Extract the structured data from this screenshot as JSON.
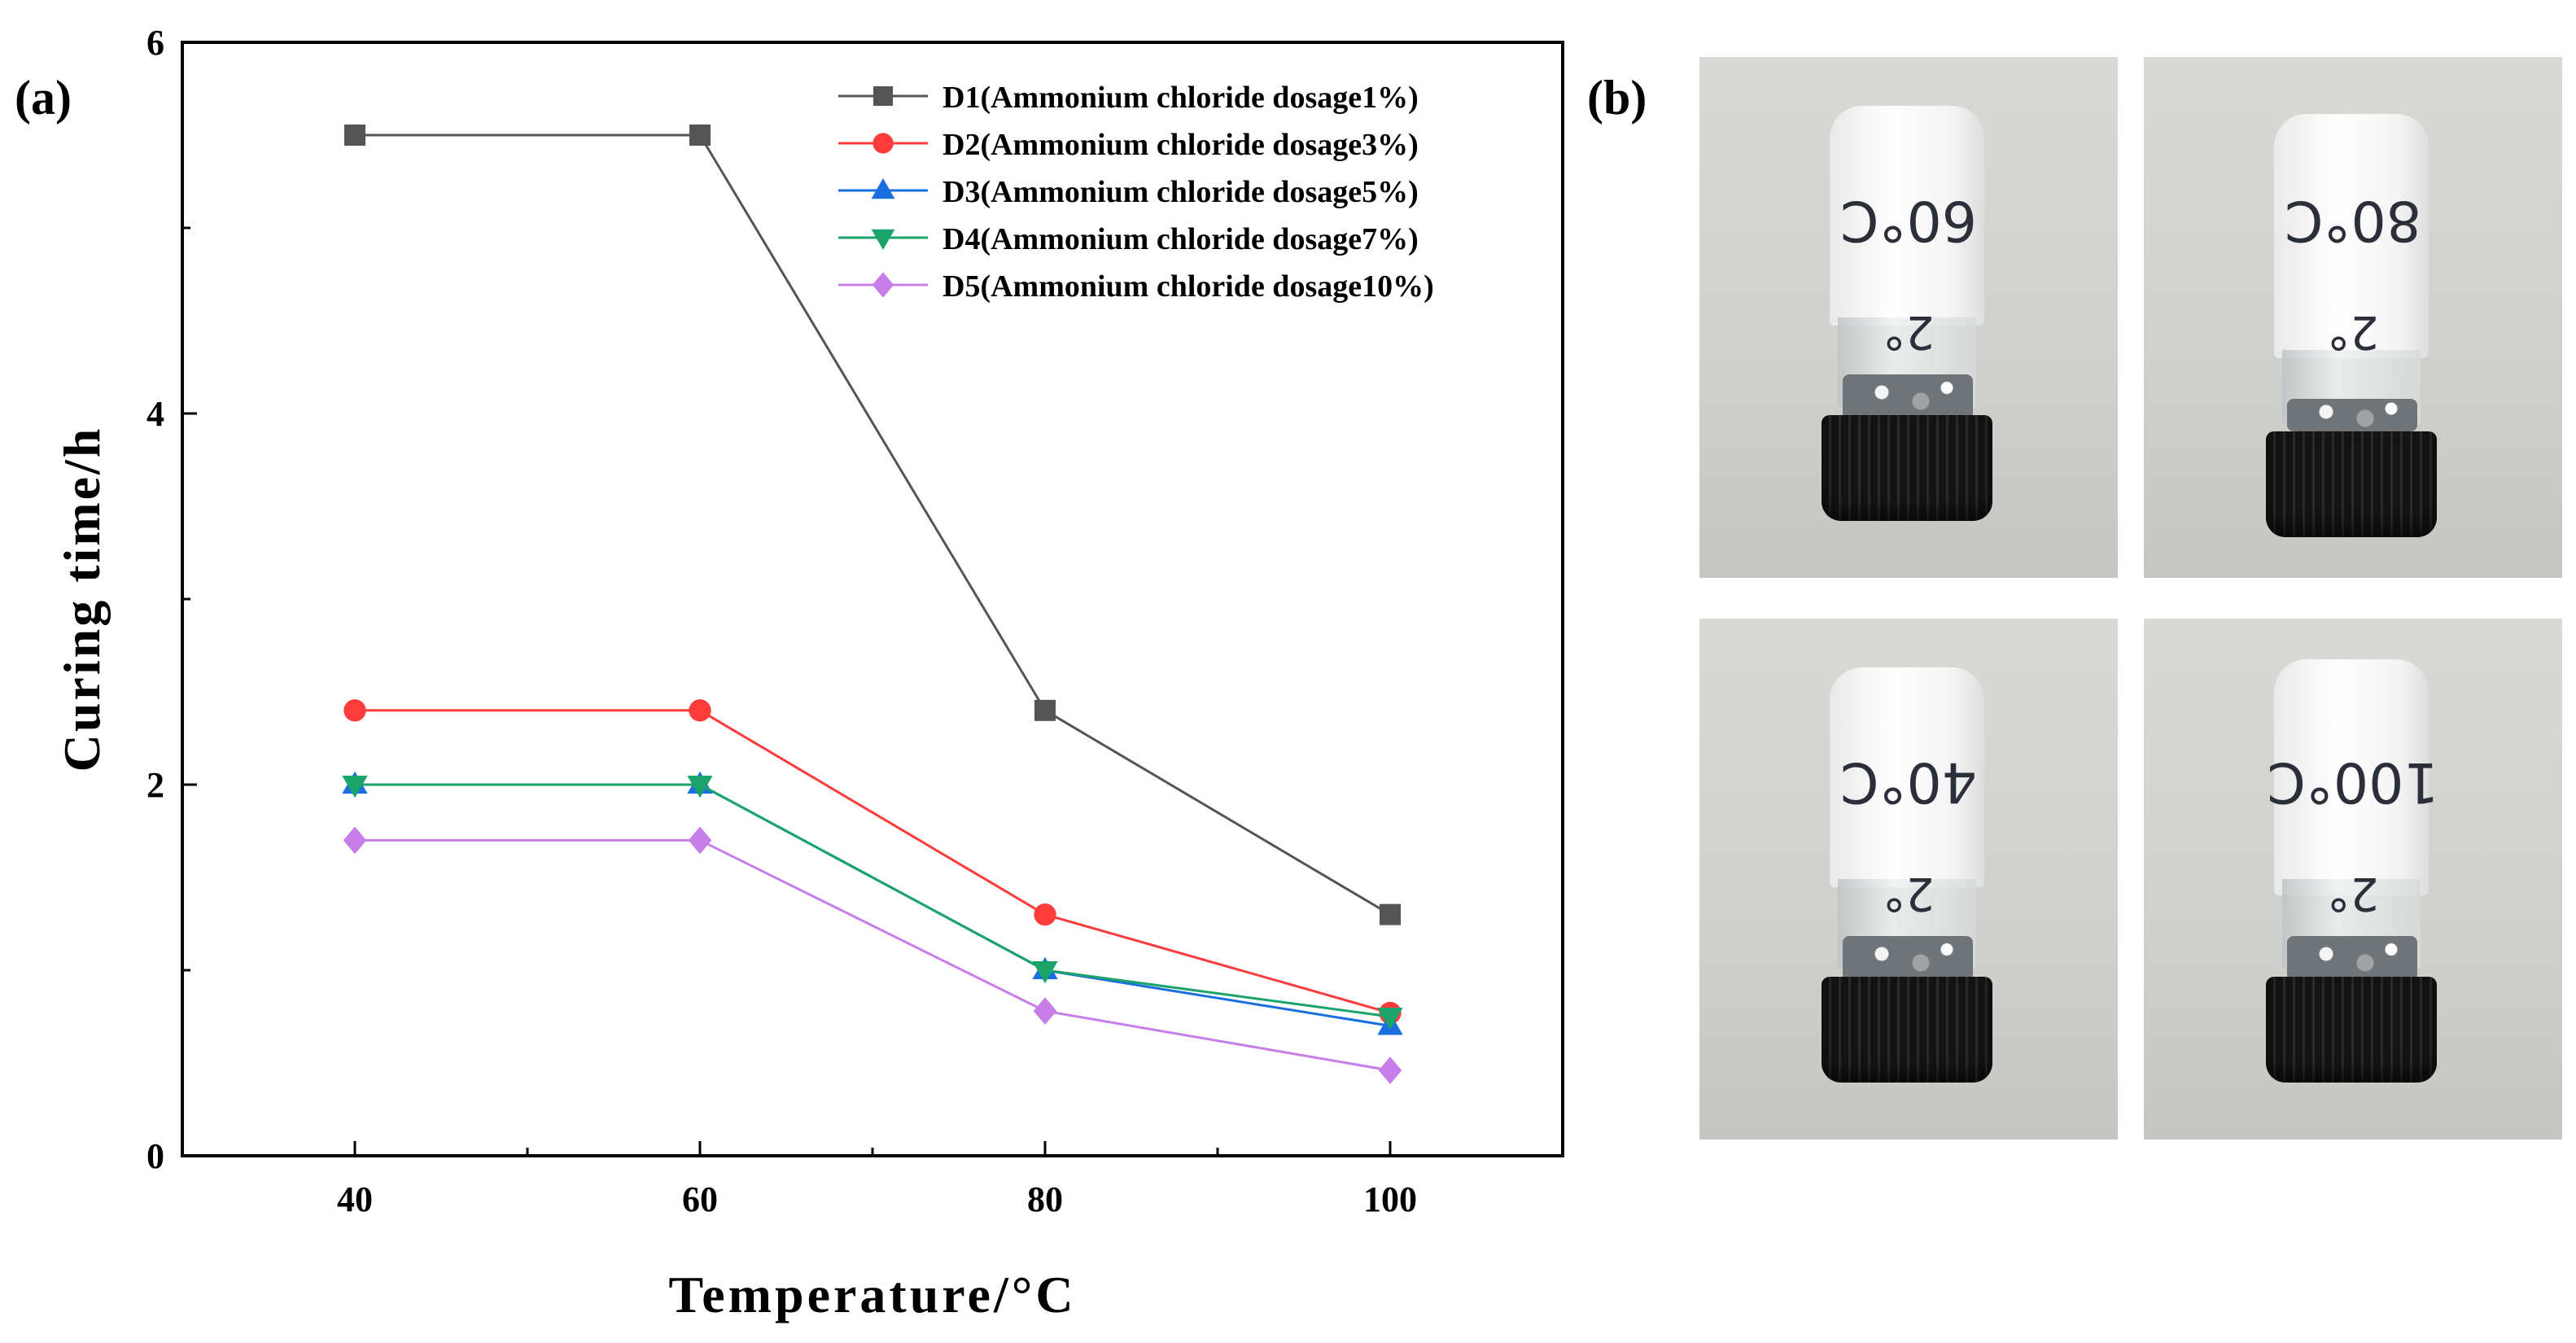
{
  "panel_labels": {
    "a": "(a)",
    "b": "(b)"
  },
  "chart_data": {
    "type": "line",
    "title": "",
    "xlabel": "Temperature/°C",
    "ylabel": "Curing time/h",
    "xlim": [
      30,
      110
    ],
    "ylim": [
      0,
      6
    ],
    "x_ticks": [
      40,
      60,
      80,
      100
    ],
    "x_minor_ticks": [
      50,
      70,
      90
    ],
    "y_ticks": [
      0,
      2,
      4,
      6
    ],
    "y_minor_ticks": [
      1,
      3,
      5
    ],
    "legend_position": "top-right",
    "grid": false,
    "series": [
      {
        "name": "D1(Ammonium chloride dosage1%)",
        "color": "#555555",
        "marker": "square",
        "x": [
          40,
          60,
          80,
          100
        ],
        "values": [
          5.5,
          5.5,
          2.4,
          1.3
        ]
      },
      {
        "name": "D2(Ammonium chloride dosage3%)",
        "color": "#ff3b3b",
        "marker": "circle",
        "x": [
          40,
          60,
          80,
          100
        ],
        "values": [
          2.4,
          2.4,
          1.3,
          0.77
        ]
      },
      {
        "name": "D3(Ammonium chloride dosage5%)",
        "color": "#1a6fe0",
        "marker": "triangle-up",
        "x": [
          40,
          60,
          80,
          100
        ],
        "values": [
          2.0,
          2.0,
          1.0,
          0.7
        ]
      },
      {
        "name": "D4(Ammonium chloride dosage7%)",
        "color": "#1aa36a",
        "marker": "triangle-down",
        "x": [
          40,
          60,
          80,
          100
        ],
        "values": [
          2.0,
          2.0,
          1.0,
          0.75
        ]
      },
      {
        "name": "D5(Ammonium chloride dosage10%)",
        "color": "#c77ee8",
        "marker": "diamond",
        "x": [
          40,
          60,
          80,
          100
        ],
        "values": [
          1.7,
          1.7,
          0.78,
          0.46
        ]
      }
    ]
  },
  "photos": [
    {
      "label": "60°C",
      "sub": "2°"
    },
    {
      "label": "80°C",
      "sub": "2°"
    },
    {
      "label": "40°C",
      "sub": "2°"
    },
    {
      "label": "100°C",
      "sub": "2°"
    }
  ]
}
